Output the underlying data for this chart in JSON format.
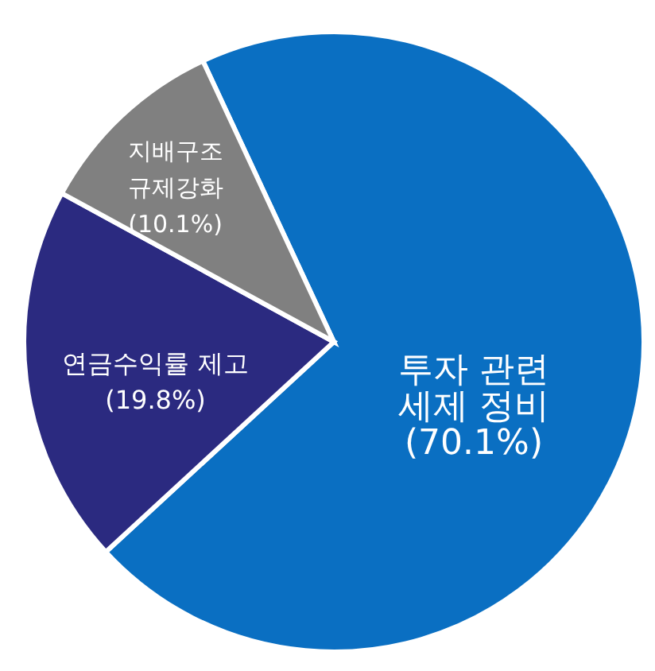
{
  "chart_data": {
    "type": "pie",
    "categories": [
      "투자 관련\n세제 정비",
      "연금수익률 제고",
      "지배구조\n규제강화"
    ],
    "values": [
      70.1,
      19.8,
      10.1
    ],
    "colors": [
      "#0a6fc2",
      "#2b2a80",
      "#808080"
    ],
    "value_labels": [
      "(70.1%)",
      "(19.8%)",
      "(10.1%)"
    ]
  }
}
